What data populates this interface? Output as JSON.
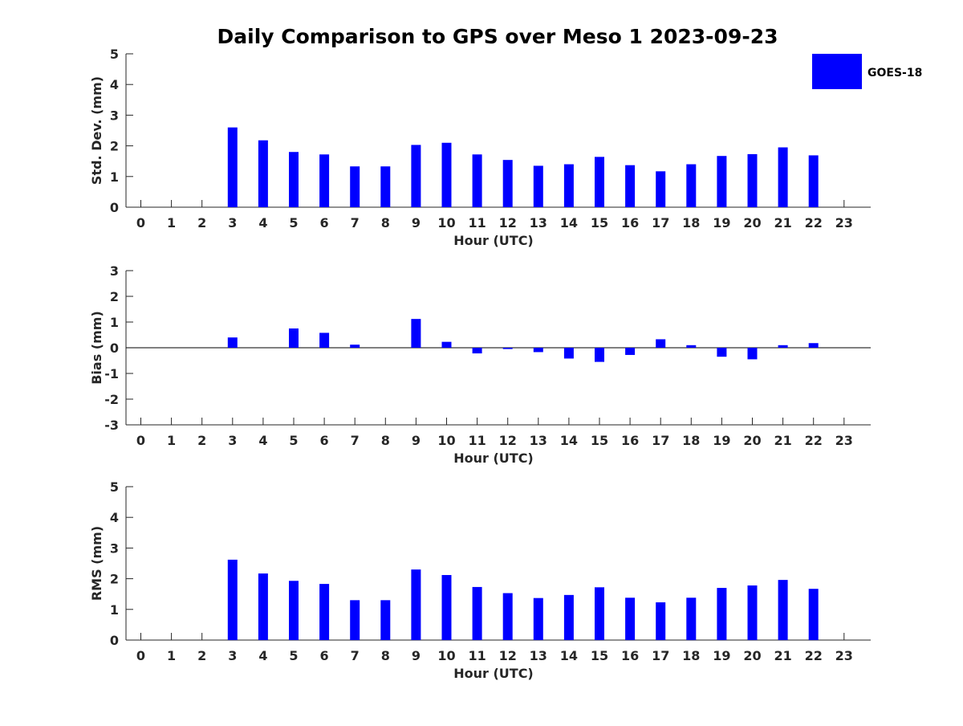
{
  "title": "Daily Comparison to GPS over Meso 1 2023-09-23",
  "legend": {
    "label": "GOES-18",
    "color": "#0000ff",
    "placement": "top-right"
  },
  "chart_data": [
    {
      "type": "bar",
      "title": "Daily Comparison to GPS over Meso 1 2023-09-23",
      "xlabel": "Hour (UTC)",
      "ylabel": "Std. Dev. (mm)",
      "ylim": [
        0,
        5
      ],
      "yticks": [
        0,
        1,
        2,
        3,
        4,
        5
      ],
      "categories": [
        0,
        1,
        2,
        3,
        4,
        5,
        6,
        7,
        8,
        9,
        10,
        11,
        12,
        13,
        14,
        15,
        16,
        17,
        18,
        19,
        20,
        21,
        22,
        23
      ],
      "series": [
        {
          "name": "GOES-18",
          "values": [
            null,
            null,
            null,
            2.6,
            2.18,
            1.8,
            1.72,
            1.33,
            1.33,
            2.03,
            2.1,
            1.72,
            1.54,
            1.35,
            1.4,
            1.64,
            1.37,
            1.17,
            1.4,
            1.67,
            1.73,
            1.95,
            1.69,
            null
          ]
        }
      ]
    },
    {
      "type": "bar",
      "xlabel": "Hour (UTC)",
      "ylabel": "Bias (mm)",
      "ylim": [
        -3,
        3
      ],
      "yticks": [
        -3,
        -2,
        -1,
        0,
        1,
        2,
        3
      ],
      "zero_line": true,
      "categories": [
        0,
        1,
        2,
        3,
        4,
        5,
        6,
        7,
        8,
        9,
        10,
        11,
        12,
        13,
        14,
        15,
        16,
        17,
        18,
        19,
        20,
        21,
        22,
        23
      ],
      "series": [
        {
          "name": "GOES-18",
          "values": [
            null,
            null,
            null,
            0.4,
            0.0,
            0.75,
            0.58,
            0.12,
            0.0,
            1.12,
            0.23,
            -0.22,
            -0.05,
            -0.17,
            -0.42,
            -0.55,
            -0.28,
            0.33,
            0.1,
            -0.35,
            -0.45,
            0.1,
            0.18,
            null
          ]
        }
      ]
    },
    {
      "type": "bar",
      "xlabel": "Hour (UTC)",
      "ylabel": "RMS (mm)",
      "ylim": [
        0,
        5
      ],
      "yticks": [
        0,
        1,
        2,
        3,
        4,
        5
      ],
      "categories": [
        0,
        1,
        2,
        3,
        4,
        5,
        6,
        7,
        8,
        9,
        10,
        11,
        12,
        13,
        14,
        15,
        16,
        17,
        18,
        19,
        20,
        21,
        22,
        23
      ],
      "series": [
        {
          "name": "GOES-18",
          "values": [
            null,
            null,
            null,
            2.62,
            2.17,
            1.93,
            1.83,
            1.3,
            1.3,
            2.3,
            2.12,
            1.73,
            1.53,
            1.37,
            1.47,
            1.72,
            1.38,
            1.23,
            1.38,
            1.7,
            1.78,
            1.96,
            1.67,
            null
          ]
        }
      ]
    }
  ]
}
